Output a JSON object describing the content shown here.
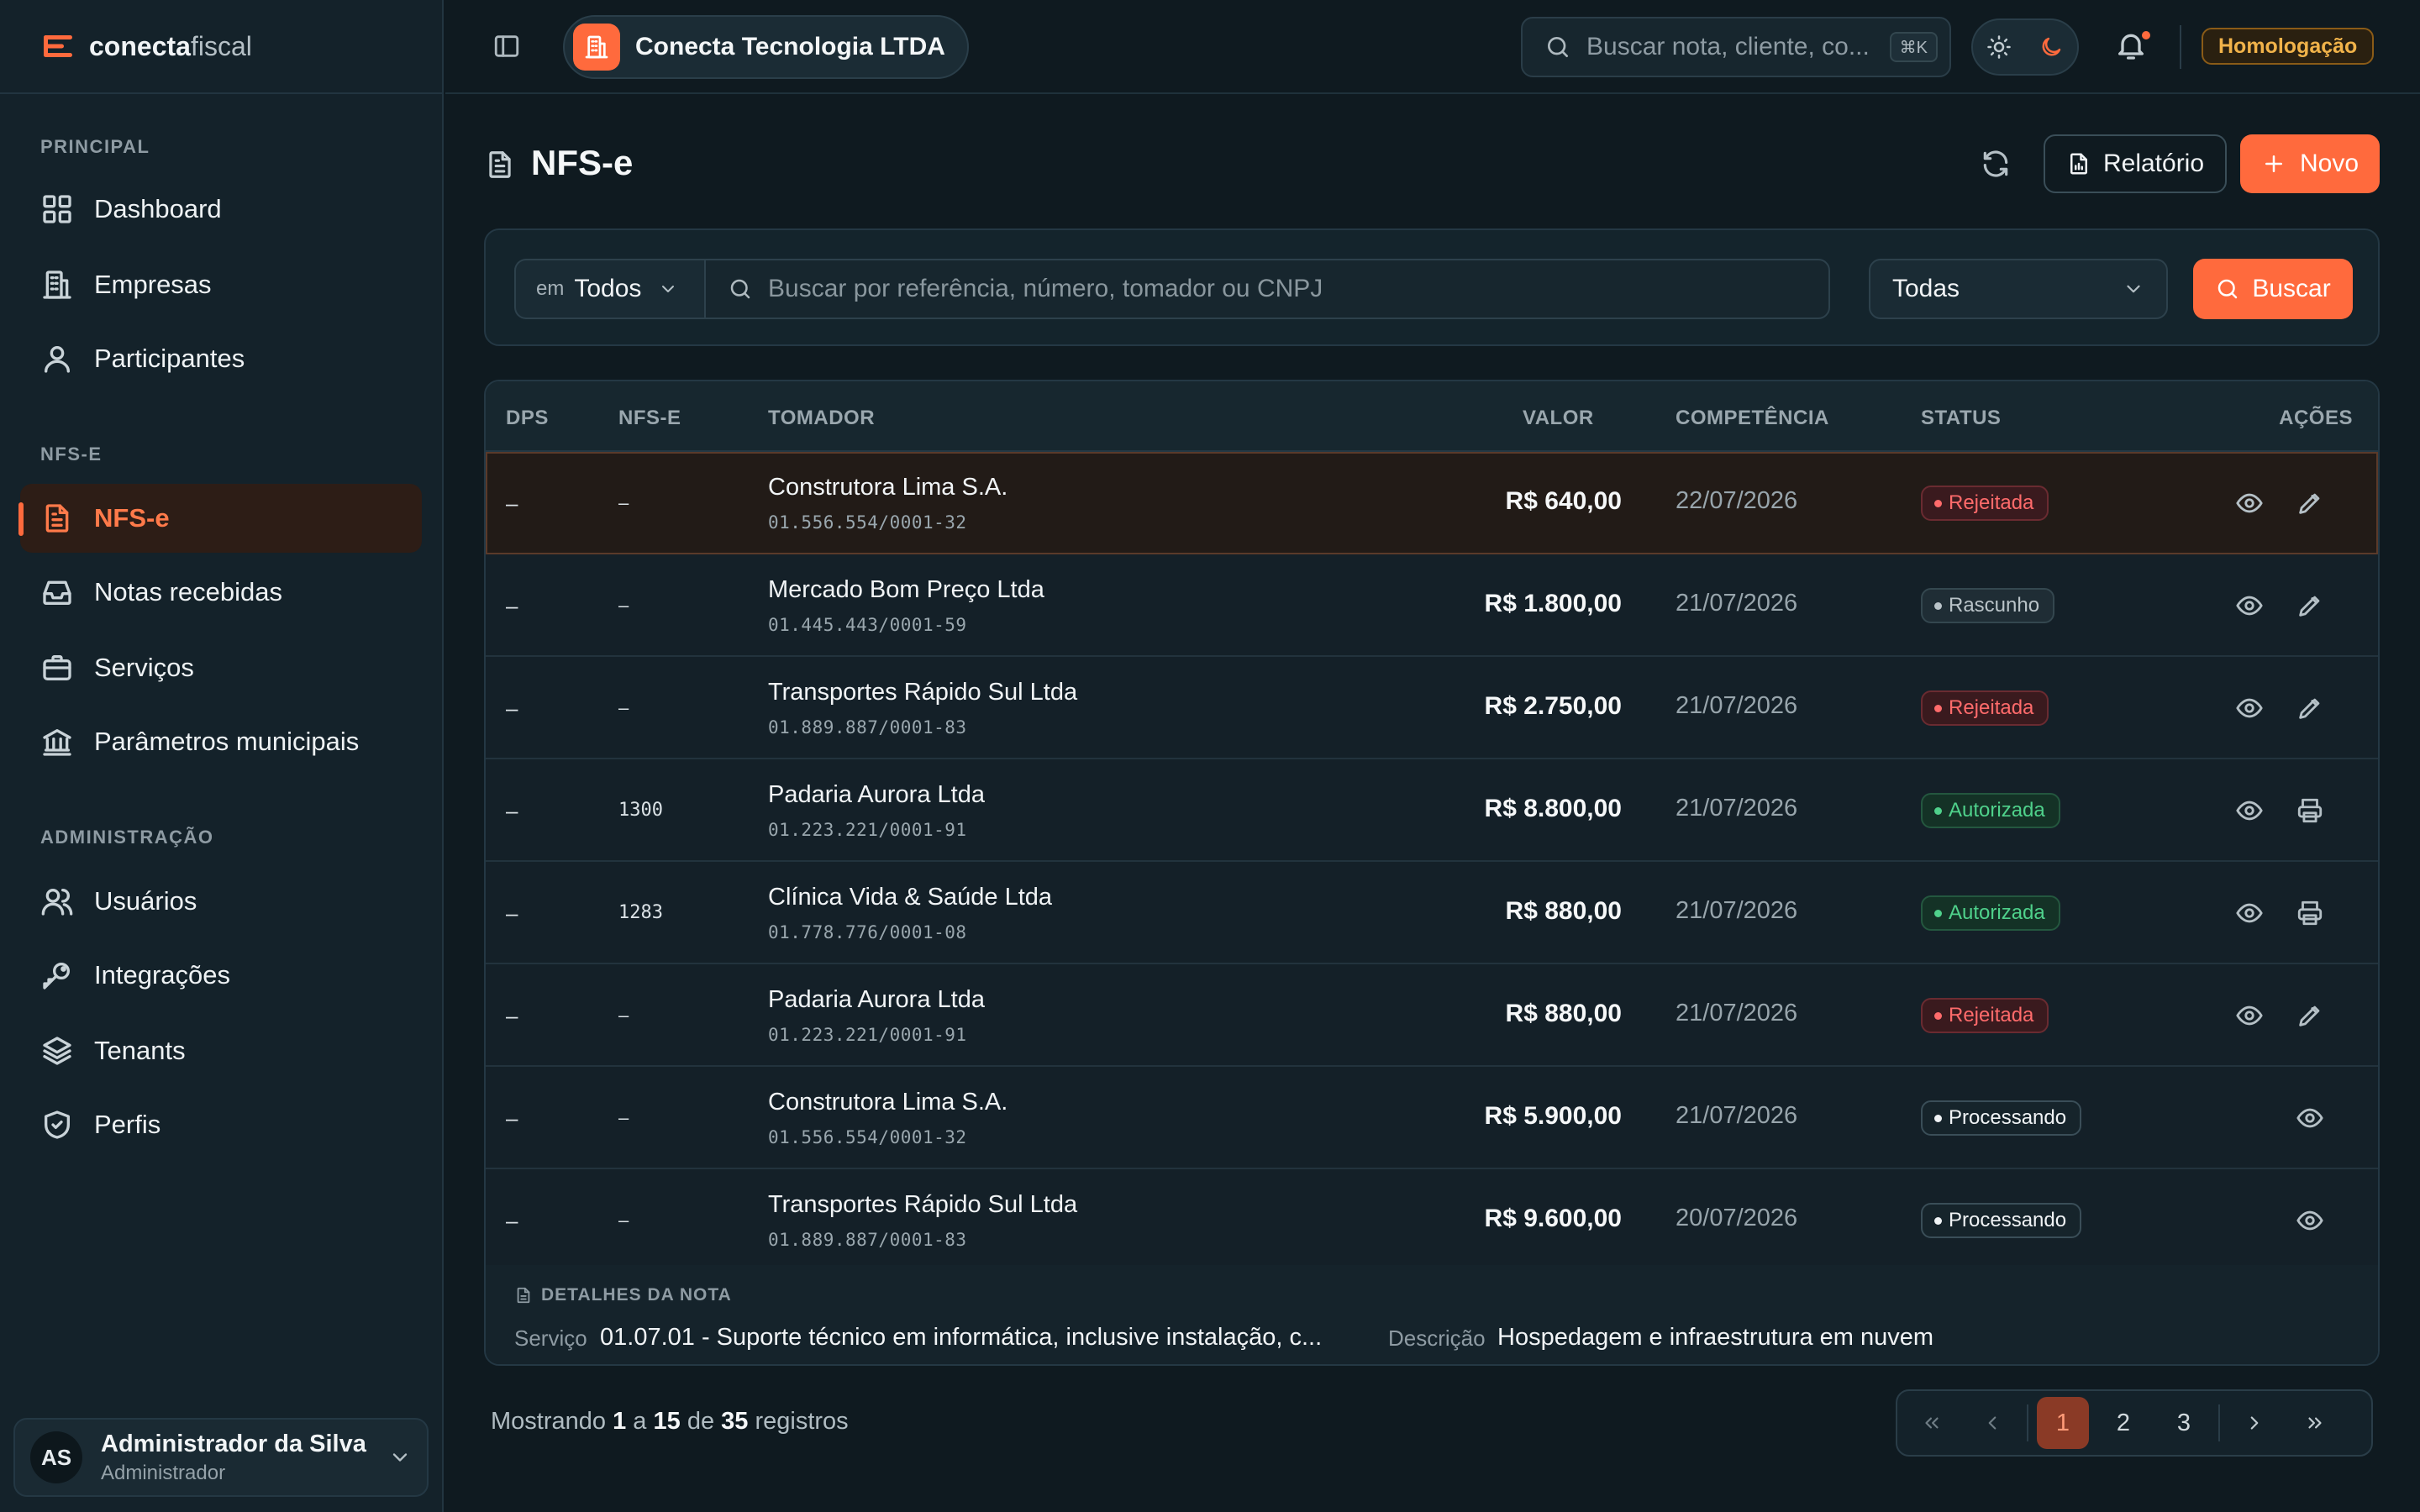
{
  "brand": {
    "name_bold": "conecta",
    "name_light": "fiscal"
  },
  "sidebar": {
    "sections": {
      "principal": "PRINCIPAL",
      "nfse": "NFS-E",
      "admin": "ADMINISTRAÇÃO"
    },
    "items": [
      {
        "label": "Dashboard",
        "icon": "grid-icon"
      },
      {
        "label": "Empresas",
        "icon": "building-icon"
      },
      {
        "label": "Participantes",
        "icon": "user-icon"
      },
      {
        "label": "NFS-e",
        "icon": "document-icon",
        "active": true
      },
      {
        "label": "Notas recebidas",
        "icon": "inbox-icon"
      },
      {
        "label": "Serviços",
        "icon": "briefcase-icon"
      },
      {
        "label": "Parâmetros municipais",
        "icon": "bank-icon"
      },
      {
        "label": "Usuários",
        "icon": "users-icon"
      },
      {
        "label": "Integrações",
        "icon": "key-icon"
      },
      {
        "label": "Tenants",
        "icon": "layers-icon"
      },
      {
        "label": "Perfis",
        "icon": "shield-icon"
      }
    ],
    "user": {
      "initials": "AS",
      "name": "Administrador da Silva",
      "role": "Administrador"
    }
  },
  "topbar": {
    "company": "Conecta Tecnologia LTDA",
    "search_placeholder": "Buscar nota, cliente, co...",
    "shortcut": "⌘K",
    "environment": "Homologação"
  },
  "page": {
    "title": "NFS-e",
    "report_label": "Relatório",
    "new_label": "Novo"
  },
  "filters": {
    "scope_prefix": "em",
    "scope_value": "Todos",
    "search_placeholder": "Buscar por referência, número, tomador ou CNPJ",
    "status_value": "Todas",
    "search_button": "Buscar"
  },
  "table": {
    "headers": {
      "dps": "DPS",
      "nfse": "NFS-E",
      "tomador": "TOMADOR",
      "valor": "VALOR",
      "competencia": "COMPETÊNCIA",
      "status": "STATUS",
      "acoes": "AÇÕES"
    },
    "rows": [
      {
        "dps": "–",
        "nfse": "–",
        "name": "Construtora Lima S.A.",
        "cnpj": "01.556.554/0001-32",
        "valor": "R$ 640,00",
        "competencia": "22/07/2026",
        "status": "Rejeitada"
      },
      {
        "dps": "–",
        "nfse": "–",
        "name": "Mercado Bom Preço Ltda",
        "cnpj": "01.445.443/0001-59",
        "valor": "R$ 1.800,00",
        "competencia": "21/07/2026",
        "status": "Rascunho"
      },
      {
        "dps": "–",
        "nfse": "–",
        "name": "Transportes Rápido Sul Ltda",
        "cnpj": "01.889.887/0001-83",
        "valor": "R$ 2.750,00",
        "competencia": "21/07/2026",
        "status": "Rejeitada"
      },
      {
        "dps": "–",
        "nfse": "1300",
        "name": "Padaria Aurora Ltda",
        "cnpj": "01.223.221/0001-91",
        "valor": "R$ 8.800,00",
        "competencia": "21/07/2026",
        "status": "Autorizada"
      },
      {
        "dps": "–",
        "nfse": "1283",
        "name": "Clínica Vida & Saúde Ltda",
        "cnpj": "01.778.776/0001-08",
        "valor": "R$ 880,00",
        "competencia": "21/07/2026",
        "status": "Autorizada"
      },
      {
        "dps": "–",
        "nfse": "–",
        "name": "Padaria Aurora Ltda",
        "cnpj": "01.223.221/0001-91",
        "valor": "R$ 880,00",
        "competencia": "21/07/2026",
        "status": "Rejeitada"
      },
      {
        "dps": "–",
        "nfse": "–",
        "name": "Construtora Lima S.A.",
        "cnpj": "01.556.554/0001-32",
        "valor": "R$ 5.900,00",
        "competencia": "21/07/2026",
        "status": "Processando"
      },
      {
        "dps": "–",
        "nfse": "–",
        "name": "Transportes Rápido Sul Ltda",
        "cnpj": "01.889.887/0001-83",
        "valor": "R$ 9.600,00",
        "competencia": "20/07/2026",
        "status": "Processando"
      }
    ],
    "details": {
      "title": "DETALHES DA NOTA",
      "service_label": "Serviço",
      "service_value": "01.07.01 - Suporte técnico em informática, inclusive instalação, c...",
      "desc_label": "Descrição",
      "desc_value": "Hospedagem e infraestrutura em nuvem"
    }
  },
  "pagination": {
    "showing_prefix": "Mostrando",
    "from": "1",
    "to_word": "a",
    "to": "15",
    "of_word": "de",
    "total": "35",
    "suffix": "registros",
    "pages": [
      "1",
      "2",
      "3"
    ],
    "current": "1"
  },
  "colors": {
    "accent": "#ff6a3d",
    "rejected": "#ff6b6b",
    "authorized": "#4fd18b",
    "warning": "#f1b34a"
  }
}
